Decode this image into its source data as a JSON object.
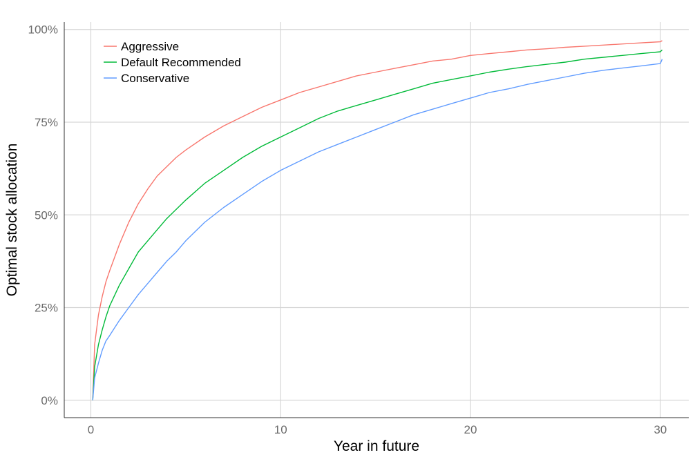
{
  "chart_data": {
    "type": "line",
    "xlabel": "Year in future",
    "ylabel": "Optimal stock allocation",
    "xlim": [
      -1.4,
      31.5
    ],
    "ylim": [
      -0.047,
      1.02
    ],
    "x_ticks": [
      0,
      10,
      20,
      30
    ],
    "x_tick_labels": [
      "0",
      "10",
      "20",
      "30"
    ],
    "y_ticks": [
      0,
      0.25,
      0.5,
      0.75,
      1.0
    ],
    "y_tick_labels": [
      "0%",
      "25%",
      "50%",
      "75%",
      "100%"
    ],
    "grid": true,
    "legend_position": "top-left",
    "series": [
      {
        "name": "Aggressive",
        "color": "#F8766D",
        "x": [
          0.1,
          0.2,
          0.4,
          0.6,
          0.8,
          1,
          1.5,
          2,
          2.5,
          3,
          3.5,
          4,
          4.5,
          5,
          6,
          7,
          8,
          9,
          10,
          11,
          12,
          13,
          14,
          15,
          16,
          17,
          18,
          19,
          20,
          21,
          22,
          23,
          24,
          25,
          26,
          27,
          28,
          29,
          30,
          30.1
        ],
        "y": [
          0,
          0.15,
          0.23,
          0.28,
          0.32,
          0.35,
          0.42,
          0.48,
          0.53,
          0.57,
          0.605,
          0.63,
          0.655,
          0.675,
          0.71,
          0.74,
          0.765,
          0.79,
          0.81,
          0.83,
          0.845,
          0.86,
          0.875,
          0.885,
          0.895,
          0.905,
          0.915,
          0.92,
          0.93,
          0.935,
          0.94,
          0.945,
          0.948,
          0.952,
          0.955,
          0.958,
          0.961,
          0.964,
          0.967,
          0.97
        ]
      },
      {
        "name": "Default Recommended",
        "color": "#00BA38",
        "x": [
          0.1,
          0.2,
          0.4,
          0.6,
          0.8,
          1,
          1.5,
          2,
          2.5,
          3,
          3.5,
          4,
          4.5,
          5,
          6,
          7,
          8,
          9,
          10,
          11,
          12,
          13,
          14,
          15,
          16,
          17,
          18,
          19,
          20,
          21,
          22,
          23,
          24,
          25,
          26,
          27,
          28,
          29,
          30,
          30.1
        ],
        "y": [
          0,
          0.09,
          0.15,
          0.19,
          0.225,
          0.255,
          0.31,
          0.355,
          0.4,
          0.43,
          0.46,
          0.49,
          0.515,
          0.54,
          0.585,
          0.62,
          0.655,
          0.685,
          0.71,
          0.735,
          0.76,
          0.78,
          0.795,
          0.81,
          0.825,
          0.84,
          0.855,
          0.865,
          0.875,
          0.885,
          0.893,
          0.9,
          0.906,
          0.912,
          0.92,
          0.925,
          0.93,
          0.935,
          0.94,
          0.945
        ]
      },
      {
        "name": "Conservative",
        "color": "#619CFF",
        "x": [
          0.1,
          0.2,
          0.4,
          0.6,
          0.8,
          1,
          1.5,
          2,
          2.5,
          3,
          3.5,
          4,
          4.5,
          5,
          6,
          7,
          8,
          9,
          10,
          11,
          12,
          13,
          14,
          15,
          16,
          17,
          18,
          19,
          20,
          21,
          22,
          23,
          24,
          25,
          26,
          27,
          28,
          29,
          30,
          30.1
        ],
        "y": [
          0,
          0.06,
          0.1,
          0.135,
          0.16,
          0.175,
          0.215,
          0.25,
          0.285,
          0.315,
          0.345,
          0.375,
          0.4,
          0.43,
          0.48,
          0.52,
          0.555,
          0.59,
          0.62,
          0.645,
          0.67,
          0.69,
          0.71,
          0.73,
          0.75,
          0.77,
          0.785,
          0.8,
          0.815,
          0.83,
          0.84,
          0.852,
          0.862,
          0.872,
          0.882,
          0.89,
          0.896,
          0.902,
          0.908,
          0.92
        ]
      }
    ]
  }
}
